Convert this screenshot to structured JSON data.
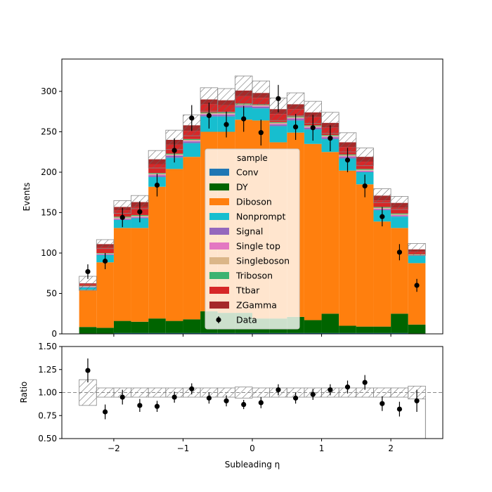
{
  "chart_data": [
    {
      "panel": "main",
      "type": "stacked-histogram",
      "title": "",
      "xlabel": "",
      "ylabel": "Events",
      "xlim": [
        -2.75,
        2.75
      ],
      "ylim": [
        0,
        340
      ],
      "yticks": [
        0,
        50,
        100,
        150,
        200,
        250,
        300
      ],
      "bin_edges": [
        -2.5,
        -2.25,
        -2.0,
        -1.75,
        -1.5,
        -1.25,
        -1.0,
        -0.75,
        -0.5,
        -0.25,
        0.0,
        0.25,
        0.5,
        0.75,
        1.0,
        1.25,
        1.5,
        1.75,
        2.0,
        2.25,
        2.5
      ],
      "series": [
        {
          "name": "Conv",
          "color": "#1f77b4",
          "values": [
            0.5,
            0.5,
            1,
            1,
            1,
            1,
            1,
            1,
            1,
            1,
            1,
            1,
            1,
            1,
            1,
            1,
            1,
            1,
            1,
            0.5
          ]
        },
        {
          "name": "DY",
          "color": "#006400",
          "values": [
            8,
            7,
            15,
            14,
            18,
            15,
            17,
            27,
            25,
            25,
            18,
            18,
            20,
            16,
            24,
            9,
            8,
            8,
            24,
            11
          ]
        },
        {
          "name": "Diboson",
          "color": "#ff7f0e",
          "values": [
            46,
            81,
            115,
            116,
            163,
            188,
            201,
            222,
            224,
            239,
            245,
            218,
            228,
            218,
            200,
            192,
            176,
            130,
            106,
            76
          ]
        },
        {
          "name": "Nonprompt",
          "color": "#17becf",
          "values": [
            3,
            9,
            10,
            12,
            12,
            14,
            17,
            19,
            19,
            15,
            15,
            20,
            15,
            18,
            16,
            15,
            15,
            14,
            14,
            9
          ]
        },
        {
          "name": "Signal",
          "color": "#9467bd",
          "values": [
            0.5,
            1,
            1,
            1,
            2,
            2,
            2,
            2,
            2,
            2,
            2,
            2,
            2,
            2,
            2,
            2,
            1,
            1,
            1,
            0.5
          ]
        },
        {
          "name": "Single top",
          "color": "#e377c2",
          "values": [
            0.5,
            0.5,
            1,
            1,
            1,
            1,
            1,
            1,
            1,
            1,
            1,
            1,
            1,
            1,
            1,
            1,
            1,
            1,
            1,
            0.5
          ]
        },
        {
          "name": "Singleboson",
          "color": "#dbb688",
          "values": [
            0.5,
            0.5,
            1,
            1,
            1,
            1,
            1,
            1,
            1,
            1,
            1,
            1,
            1,
            1,
            1,
            1,
            1,
            1,
            1,
            0.5
          ]
        },
        {
          "name": "Triboson",
          "color": "#3cb371",
          "values": [
            0.5,
            0.5,
            1,
            1,
            1,
            1,
            1,
            1,
            1,
            1,
            1,
            1,
            1,
            1,
            1,
            1,
            1,
            1,
            1,
            0.5
          ]
        },
        {
          "name": "Ttbar",
          "color": "#d62728",
          "values": [
            2,
            7,
            8,
            10,
            11,
            11,
            10,
            10,
            9,
            9,
            8,
            10,
            9,
            10,
            9,
            9,
            9,
            8,
            7,
            3
          ]
        },
        {
          "name": "ZGamma",
          "color": "#a52a2a",
          "values": [
            1,
            4,
            4,
            6,
            6,
            6,
            7,
            6,
            6,
            7,
            6,
            6,
            6,
            6,
            6,
            6,
            6,
            6,
            6,
            3
          ]
        }
      ],
      "uncertainty": {
        "relative": [
          0.14,
          0.05,
          0.05,
          0.05,
          0.05,
          0.05,
          0.05,
          0.05,
          0.05,
          0.06,
          0.05,
          0.05,
          0.05,
          0.05,
          0.05,
          0.05,
          0.05,
          0.05,
          0.05,
          0.07
        ],
        "style": "hatched"
      },
      "data": {
        "name": "Data",
        "color": "#000000",
        "values": [
          77,
          90,
          144,
          151,
          184,
          227,
          267,
          270,
          259,
          266,
          249,
          291,
          256,
          255,
          242,
          215,
          183,
          145,
          101,
          60
        ],
        "errors": [
          9,
          10,
          12,
          13,
          14,
          15,
          16,
          16,
          16,
          16,
          16,
          17,
          16,
          16,
          16,
          15,
          14,
          12,
          10,
          8
        ]
      },
      "legend": {
        "title": "sample",
        "position": "center",
        "entries": [
          "Conv",
          "DY",
          "Diboson",
          "Nonprompt",
          "Signal",
          "Single top",
          "Singleboson",
          "Triboson",
          "Ttbar",
          "ZGamma",
          "Data"
        ]
      }
    },
    {
      "panel": "ratio",
      "type": "scatter-errorbar",
      "xlabel": "Subleading η",
      "ylabel": "Ratio",
      "xlim": [
        -2.75,
        2.75
      ],
      "ylim": [
        0.5,
        1.5
      ],
      "yticks": [
        "0.50",
        "0.75",
        "1.00",
        "1.25",
        "1.50"
      ],
      "xticks": [
        "−2",
        "−1",
        "0",
        "1",
        "2"
      ],
      "reference_line": 1.0,
      "values": [
        1.24,
        0.79,
        0.95,
        0.86,
        0.85,
        0.95,
        1.04,
        0.94,
        0.91,
        0.87,
        0.89,
        1.03,
        0.94,
        0.98,
        1.03,
        1.06,
        1.11,
        0.88,
        0.82,
        0.91
      ],
      "errors": [
        0.13,
        0.08,
        0.08,
        0.07,
        0.06,
        0.06,
        0.06,
        0.06,
        0.06,
        0.05,
        0.06,
        0.06,
        0.06,
        0.06,
        0.06,
        0.07,
        0.08,
        0.08,
        0.08,
        0.12
      ]
    }
  ]
}
